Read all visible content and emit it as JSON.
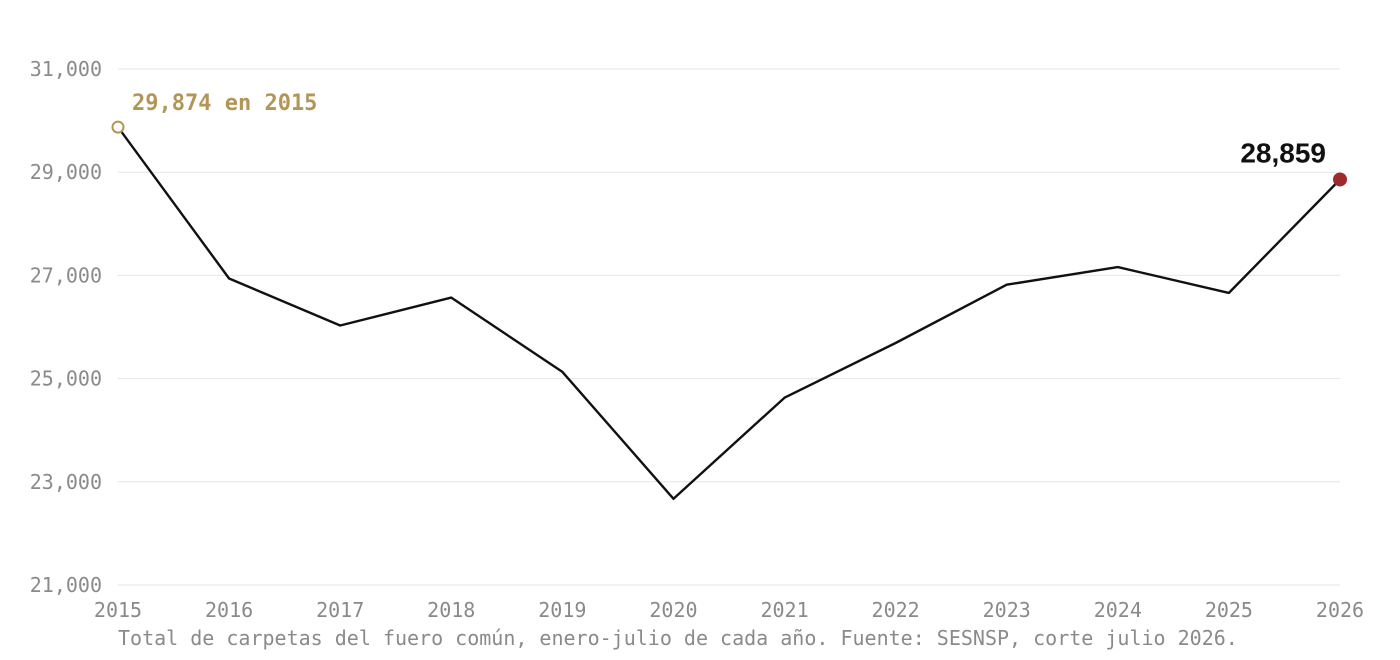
{
  "chart_data": {
    "type": "line",
    "x": [
      "2015",
      "2016",
      "2017",
      "2018",
      "2019",
      "2020",
      "2021",
      "2022",
      "2023",
      "2024",
      "2025",
      "2026"
    ],
    "series": [
      {
        "values": [
          29874,
          26940,
          26030,
          26570,
          25130,
          22670,
          24630,
          25690,
          26820,
          27160,
          26660,
          28859
        ]
      }
    ],
    "ylim": [
      21000,
      31000
    ],
    "yticks": [
      21000,
      23000,
      25000,
      27000,
      29000,
      31000
    ],
    "ytick_labels": [
      "21,000",
      "23,000",
      "25,000",
      "27,000",
      "29,000",
      "31,000"
    ],
    "grid": true,
    "annotations": {
      "start": "29,874 en 2015",
      "end": "28,859"
    },
    "colors": {
      "line": "#111111",
      "start_marker": "#b39657",
      "end_marker": "#9e2a2b",
      "grid": "#e6e6e6",
      "tick_text": "#8a8a8a"
    },
    "caption": "Total de carpetas del fuero común, enero-julio de cada año. Fuente: SESNSP, corte julio 2026."
  }
}
